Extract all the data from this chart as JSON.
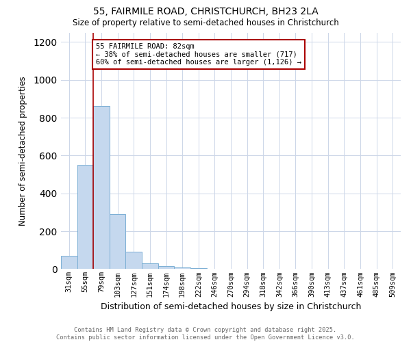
{
  "title1": "55, FAIRMILE ROAD, CHRISTCHURCH, BH23 2LA",
  "title2": "Size of property relative to semi-detached houses in Christchurch",
  "xlabel": "Distribution of semi-detached houses by size in Christchurch",
  "ylabel": "Number of semi-detached properties",
  "categories": [
    "31sqm",
    "55sqm",
    "79sqm",
    "103sqm",
    "127sqm",
    "151sqm",
    "174sqm",
    "198sqm",
    "222sqm",
    "246sqm",
    "270sqm",
    "294sqm",
    "318sqm",
    "342sqm",
    "366sqm",
    "390sqm",
    "413sqm",
    "437sqm",
    "461sqm",
    "485sqm",
    "509sqm"
  ],
  "values": [
    70,
    550,
    860,
    290,
    90,
    30,
    15,
    10,
    5,
    0,
    0,
    0,
    0,
    0,
    0,
    0,
    0,
    0,
    0,
    0,
    0
  ],
  "bar_color": "#c5d8ee",
  "bar_edge_color": "#7bafd4",
  "vline_color": "#aa0000",
  "annotation_line1": "55 FAIRMILE ROAD: 82sqm",
  "annotation_line2": "← 38% of semi-detached houses are smaller (717)",
  "annotation_line3": "60% of semi-detached houses are larger (1,126) →",
  "annotation_box_color": "#ffffff",
  "annotation_box_edge": "#aa0000",
  "ylim": [
    0,
    1250
  ],
  "yticks": [
    0,
    200,
    400,
    600,
    800,
    1000,
    1200
  ],
  "footer1": "Contains HM Land Registry data © Crown copyright and database right 2025.",
  "footer2": "Contains public sector information licensed under the Open Government Licence v3.0.",
  "bg_color": "#ffffff",
  "grid_color": "#ccd6e8"
}
